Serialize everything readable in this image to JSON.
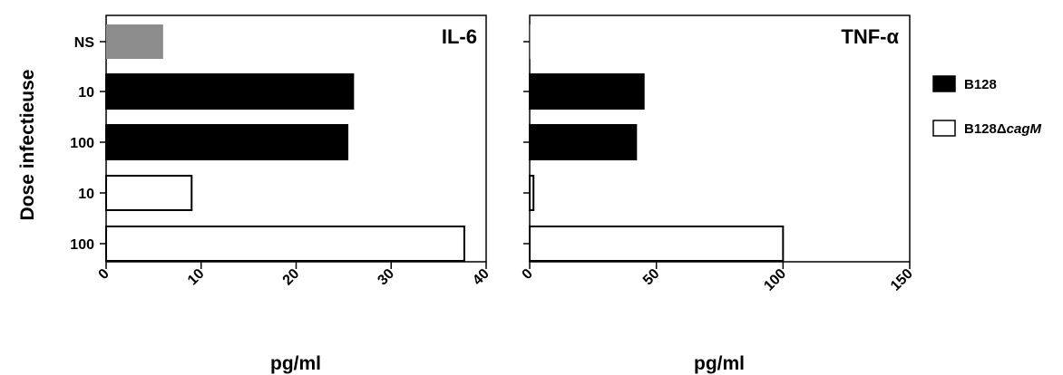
{
  "chart_data": {
    "type": "bar",
    "orientation": "horizontal",
    "y_axis_label": "Dose infectieuse",
    "categories": [
      "NS",
      "10",
      "100",
      "10",
      "100"
    ],
    "bar_groups": [
      "NS",
      "B128",
      "B128",
      "B128ΔcagM",
      "B128ΔcagM"
    ],
    "panels": [
      {
        "title": "IL-6",
        "xlabel": "pg/ml",
        "xlim": [
          0,
          40
        ],
        "xticks": [
          0,
          10,
          20,
          30,
          40
        ],
        "values": [
          6,
          26,
          25.4,
          9,
          37.7
        ]
      },
      {
        "title": "TNF-α",
        "xlabel": "pg/ml",
        "xlim": [
          0,
          150
        ],
        "xticks": [
          0,
          50,
          100,
          150
        ],
        "values": [
          0.3,
          45,
          42,
          1.5,
          100
        ]
      }
    ],
    "legend": {
      "position": "right",
      "items": [
        {
          "label": "B128",
          "fill": "#000000"
        },
        {
          "label_prefix": "B128Δ",
          "label_italic": "cagM",
          "fill": "#ffffff"
        }
      ]
    },
    "colors": {
      "NS": "#8c8c8c",
      "B128": "#000000",
      "B128ΔcagM": "#ffffff"
    }
  }
}
